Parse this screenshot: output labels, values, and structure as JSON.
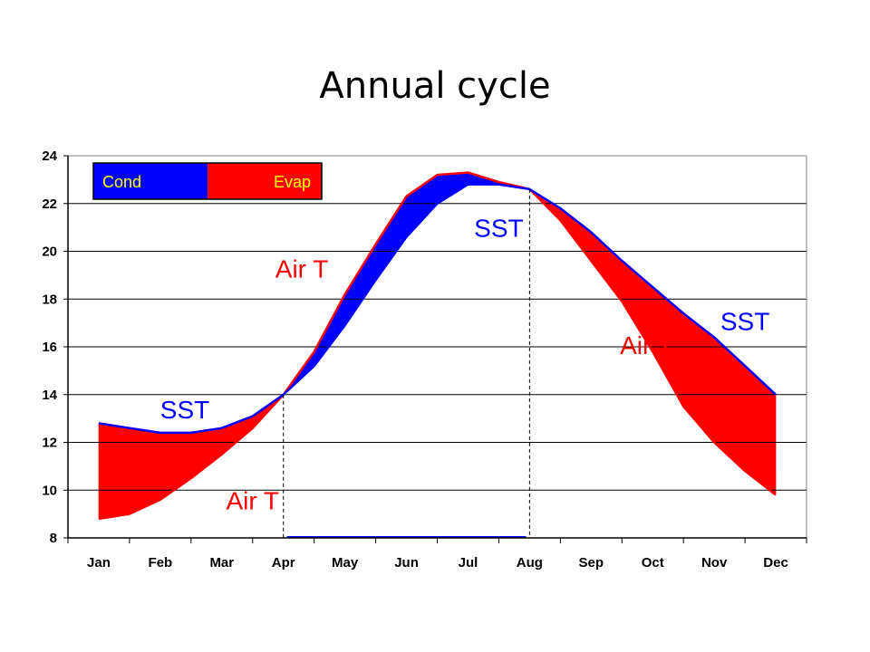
{
  "slide": {
    "title": "Annual cycle"
  },
  "colors": {
    "sst": "#0000ff",
    "air": "#ff0000",
    "legend_text": "#ffff00",
    "grid": "#000000"
  },
  "chart_data": {
    "type": "area",
    "title": "",
    "xlabel": "",
    "ylabel": "",
    "categories": [
      "Jan",
      "Feb",
      "Mar",
      "Apr",
      "May",
      "Jun",
      "Jul",
      "Aug",
      "Sep",
      "Oct",
      "Nov",
      "Dec"
    ],
    "ylim": [
      8,
      24
    ],
    "yticks": [
      8,
      10,
      12,
      14,
      16,
      18,
      20,
      22,
      24
    ],
    "grid": true,
    "legend_position": "top-left",
    "series": [
      {
        "name": "SST",
        "x": [
          1,
          1.5,
          2,
          2.5,
          3,
          3.5,
          4,
          4.5,
          5,
          5.5,
          6,
          6.5,
          7,
          7.5,
          8,
          8.5,
          9,
          9.5,
          10,
          10.5,
          11,
          11.5,
          12
        ],
        "values": [
          12.8,
          12.6,
          12.4,
          12.4,
          12.6,
          13.1,
          14.0,
          15.2,
          16.9,
          18.8,
          20.6,
          22.0,
          22.8,
          22.8,
          22.6,
          21.8,
          20.8,
          19.6,
          18.5,
          17.4,
          16.4,
          15.2,
          14.0
        ]
      },
      {
        "name": "Air T",
        "x": [
          1,
          1.5,
          2,
          2.5,
          3,
          3.5,
          4,
          4.5,
          5,
          5.5,
          6,
          6.5,
          7,
          7.5,
          8,
          8.5,
          9,
          9.5,
          10,
          10.5,
          11,
          11.5,
          12
        ],
        "values": [
          8.8,
          9.0,
          9.6,
          10.5,
          11.5,
          12.6,
          14.0,
          15.8,
          18.2,
          20.3,
          22.3,
          23.2,
          23.3,
          22.9,
          22.6,
          21.3,
          19.6,
          17.9,
          15.8,
          13.5,
          12.0,
          10.8,
          9.8
        ]
      }
    ],
    "legend": [
      {
        "label": "Cond",
        "color": "#0000ff"
      },
      {
        "label": "Evap",
        "color": "#ff0000"
      }
    ],
    "annotations": [
      {
        "text": "SST",
        "series": "SST",
        "x": 2.4,
        "y": 13.0
      },
      {
        "text": "Air T",
        "series": "Air T",
        "x": 3.5,
        "y": 9.2
      },
      {
        "text": "Air T",
        "series": "Air T",
        "x": 4.3,
        "y": 18.9
      },
      {
        "text": "SST",
        "series": "SST",
        "x": 7.5,
        "y": 20.6
      },
      {
        "text": "SST",
        "series": "SST",
        "x": 11.5,
        "y": 16.7
      },
      {
        "text": "Air T",
        "series": "Air T",
        "x": 9.9,
        "y": 15.7
      }
    ],
    "vlines_at_crossings": [
      4,
      8
    ]
  }
}
